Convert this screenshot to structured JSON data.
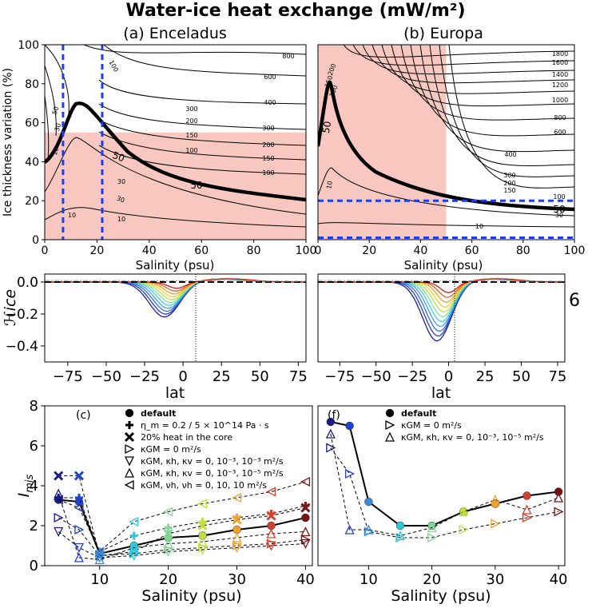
{
  "figure": {
    "title": "Water-ice heat exchange (mW/m²)"
  },
  "chart_data": [
    {
      "id": "a",
      "type": "contour",
      "title": "(a) Enceladus",
      "xlabel": "Salinity (psu)",
      "ylabel": "Ice thickness variation (%)",
      "xlim": [
        0,
        100
      ],
      "ylim": [
        0,
        100
      ],
      "xticks": [
        0,
        20,
        40,
        60,
        80,
        100
      ],
      "yticks": [
        0,
        20,
        40,
        60,
        80,
        100
      ],
      "shaded_region": {
        "x": [
          0,
          100
        ],
        "y": [
          0,
          55
        ],
        "color": "#f8c8c0"
      },
      "dashed_lines": [
        {
          "orientation": "vertical",
          "x": 7
        },
        {
          "orientation": "vertical",
          "x": 22
        }
      ],
      "highlight_level": 50,
      "contour_labels": [
        "800",
        "600",
        "400",
        "300",
        "200",
        "150",
        "100",
        "50",
        "30",
        "10",
        "100",
        "150",
        "200",
        "300",
        "50",
        "30",
        "10",
        "100",
        "50",
        "30",
        "10"
      ]
    },
    {
      "id": "b",
      "type": "contour",
      "title": "(b) Europa",
      "xlabel": "Salinity (psu)",
      "xlim": [
        0,
        100
      ],
      "ylim": [
        0,
        100
      ],
      "xticks": [
        0,
        20,
        40,
        60,
        80,
        100
      ],
      "shaded_region": {
        "x": [
          0,
          50
        ],
        "y": [
          0,
          100
        ],
        "color": "#f8c8c0"
      },
      "dashed_lines": [
        {
          "orientation": "horizontal",
          "y": 20
        },
        {
          "orientation": "horizontal",
          "y": 1
        }
      ],
      "highlight_level": 50,
      "contour_labels": [
        "1800",
        "1600",
        "1400",
        "1200",
        "1000",
        "800",
        "600",
        "400",
        "300",
        "200",
        "150",
        "100",
        "50",
        "30",
        "10",
        "200",
        "150",
        "100",
        "50",
        "10"
      ]
    },
    {
      "id": "c_top",
      "type": "line",
      "ylabel": "ℋice",
      "xlabel": "lat",
      "xlim": [
        -90,
        80
      ],
      "ylim": [
        -0.5,
        0.05
      ],
      "xticks": [
        -75,
        -50,
        -25,
        0,
        25,
        50,
        75
      ],
      "yticks": [
        0.0,
        -0.2,
        -0.4
      ],
      "ytick_labels": [
        "0.0",
        "−0.2",
        "−0.4"
      ],
      "xtick_labels": [
        "−75",
        "−50",
        "−25",
        "0",
        "25",
        "50",
        "75"
      ],
      "dip_center": -12,
      "dip_min": -0.22
    },
    {
      "id": "f_top",
      "type": "line",
      "xlabel": "lat",
      "xlim": [
        -90,
        80
      ],
      "ylim": [
        -0.5,
        0.05
      ],
      "xticks": [
        -75,
        -50,
        -25,
        0,
        25,
        50,
        75
      ],
      "xtick_labels": [
        "−75",
        "−50",
        "−25",
        "0",
        "25",
        "50",
        "75"
      ],
      "dip_center": -8,
      "dip_min": -0.37,
      "edge_glyph": "6"
    },
    {
      "id": "c",
      "type": "line",
      "panel_label": "(c)",
      "xlabel": "Salinity (psu)",
      "ylabel": "Imis",
      "xlim": [
        2,
        41
      ],
      "ylim": [
        0,
        8
      ],
      "xticks": [
        10,
        20,
        30,
        40
      ],
      "yticks": [
        0,
        2,
        4,
        6,
        8
      ],
      "x": [
        4,
        7,
        10,
        15,
        20,
        25,
        30,
        35,
        40
      ],
      "point_colors": [
        "#1a1a8a",
        "#2040d0",
        "#3a8ad8",
        "#30c8d8",
        "#80d890",
        "#c0e040",
        "#f0a030",
        "#d04030",
        "#7a1010"
      ],
      "series": [
        {
          "name": "default",
          "marker": "circle",
          "style": "solid",
          "values": [
            3.3,
            3.2,
            0.6,
            1.0,
            1.4,
            1.5,
            1.8,
            2.0,
            2.4
          ]
        },
        {
          "name": "η_m = 0.2 / 5 × 10^14 Pa · s",
          "marker": "plus",
          "style": "dashed",
          "values": [
            3.4,
            3.4,
            0.7,
            1.5,
            1.9,
            2.2,
            2.4,
            2.6,
            3.0
          ]
        },
        {
          "name": "20% heat in the core",
          "marker": "x",
          "style": "dashed",
          "values": [
            4.5,
            4.5,
            0.5,
            0.7,
            1.6,
            2.0,
            2.3,
            2.5,
            2.9
          ]
        },
        {
          "name": "κGM = 0 m²/s",
          "marker": "tri-right",
          "style": "dashed",
          "values": [
            2.4,
            1.8,
            0.5,
            0.6,
            0.8,
            0.9,
            1.0,
            1.1,
            1.3
          ]
        },
        {
          "name": "κGM, κh, κv = 0, 10⁻³, 10⁻³ m²/s",
          "marker": "tri-down",
          "style": "dashed",
          "values": [
            1.7,
            0.9,
            0.4,
            0.5,
            0.7,
            0.8,
            0.9,
            1.0,
            1.1
          ]
        },
        {
          "name": "κGM, κh, κv = 0, 10⁻³, 10⁻⁵ m²/s",
          "marker": "tri-up",
          "style": "dashed",
          "values": [
            3.6,
            0.4,
            0.3,
            0.9,
            1.1,
            1.2,
            1.4,
            1.6,
            1.7
          ]
        },
        {
          "name": "κGM, νh, νh = 0, 10, 10 m²/s",
          "marker": "tri-left",
          "style": "dashed",
          "values": [
            3.3,
            2.9,
            0.7,
            2.2,
            2.7,
            3.1,
            3.4,
            3.7,
            4.2
          ]
        }
      ]
    },
    {
      "id": "f",
      "type": "line",
      "panel_label": "(f)",
      "xlabel": "Salinity (psu)",
      "xlim": [
        2,
        41
      ],
      "ylim": [
        0,
        8
      ],
      "xticks": [
        10,
        20,
        30,
        40
      ],
      "x": [
        4,
        7,
        10,
        15,
        20,
        25,
        30,
        35,
        40
      ],
      "point_colors": [
        "#1a1a8a",
        "#2040d0",
        "#3a8ad8",
        "#30c8d8",
        "#80d890",
        "#c0e040",
        "#f0a030",
        "#d04030",
        "#7a1010"
      ],
      "series": [
        {
          "name": "default",
          "marker": "circle",
          "style": "solid",
          "values": [
            7.2,
            7.0,
            3.2,
            2.0,
            2.0,
            2.7,
            3.1,
            3.5,
            3.7
          ]
        },
        {
          "name": "κGM = 0 m²/s",
          "marker": "tri-right",
          "style": "dashed",
          "values": [
            5.9,
            4.6,
            1.7,
            1.4,
            1.4,
            1.8,
            2.1,
            2.4,
            2.7
          ]
        },
        {
          "name": "κGM, κh, κv = 0, 10⁻³, 10⁻⁵ m²/s",
          "marker": "tri-up",
          "style": "dashed",
          "values": [
            6.6,
            1.8,
            1.8,
            1.5,
            1.9,
            2.7,
            3.3,
            2.8,
            3.4
          ]
        }
      ]
    }
  ]
}
